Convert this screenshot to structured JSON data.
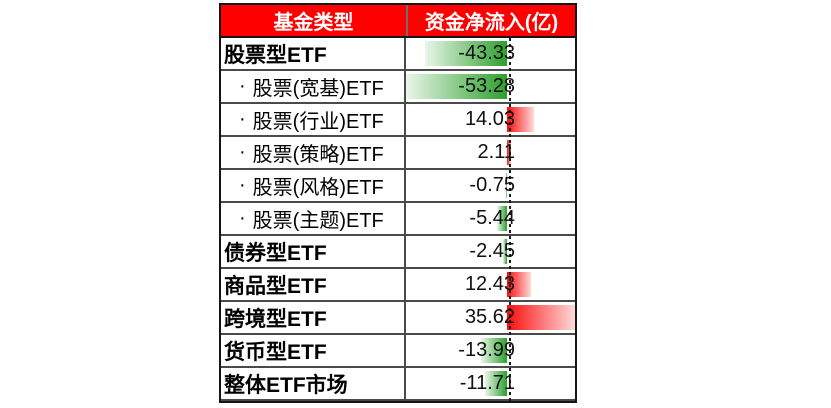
{
  "colors": {
    "header_bg": "#FE0000",
    "header_text": "#FFFFFF",
    "negative_bar_strong": "#2CA02C",
    "negative_bar_pale": "#EAF6EA",
    "positive_bar_strong": "#FB0D0D",
    "positive_bar_pale": "#FFD9D9",
    "grid_border": "#4A4A4A",
    "axis_dash": "#1C1C1C",
    "body_text": "#000000"
  },
  "table": {
    "bullet": "·",
    "columns": [
      {
        "label": "基金类型"
      },
      {
        "label": "资金净流入(亿)"
      }
    ],
    "scale": {
      "min": -53.28,
      "max": 35.62
    },
    "rows": [
      {
        "label": "股票型ETF",
        "value": -43.33,
        "value_text": "-43.33",
        "bold": true,
        "sub": false
      },
      {
        "label": "股票(宽基)ETF",
        "value": -53.28,
        "value_text": "-53.28",
        "bold": false,
        "sub": true
      },
      {
        "label": "股票(行业)ETF",
        "value": 14.03,
        "value_text": "14.03",
        "bold": false,
        "sub": true
      },
      {
        "label": "股票(策略)ETF",
        "value": 2.11,
        "value_text": "2.11",
        "bold": false,
        "sub": true
      },
      {
        "label": "股票(风格)ETF",
        "value": -0.75,
        "value_text": "-0.75",
        "bold": false,
        "sub": true
      },
      {
        "label": "股票(主题)ETF",
        "value": -5.44,
        "value_text": "-5.44",
        "bold": false,
        "sub": true
      },
      {
        "label": "债券型ETF",
        "value": -2.45,
        "value_text": "-2.45",
        "bold": true,
        "sub": false
      },
      {
        "label": "商品型ETF",
        "value": 12.43,
        "value_text": "12.43",
        "bold": true,
        "sub": false
      },
      {
        "label": "跨境型ETF",
        "value": 35.62,
        "value_text": "35.62",
        "bold": true,
        "sub": false
      },
      {
        "label": "货币型ETF",
        "value": -13.99,
        "value_text": "-13.99",
        "bold": true,
        "sub": false
      },
      {
        "label": "整体ETF市场",
        "value": -11.71,
        "value_text": "-11.71",
        "bold": true,
        "sub": false
      }
    ]
  },
  "chart_data": {
    "type": "table",
    "title": "",
    "columns": [
      "基金类型",
      "资金净流入(亿)"
    ],
    "categories": [
      "股票型ETF",
      "股票(宽基)ETF",
      "股票(行业)ETF",
      "股票(策略)ETF",
      "股票(风格)ETF",
      "股票(主题)ETF",
      "债券型ETF",
      "商品型ETF",
      "跨境型ETF",
      "货币型ETF",
      "整体ETF市场"
    ],
    "values": [
      -43.33,
      -53.28,
      14.03,
      2.11,
      -0.75,
      -5.44,
      -2.45,
      12.43,
      35.62,
      -13.99,
      -11.71
    ],
    "bar_style": {
      "kind": "in-cell data bars with gradient fill",
      "negative_color": "green",
      "positive_color": "red",
      "axis": 0,
      "axis_line": "dashed vertical",
      "range_min": -53.28,
      "range_max": 35.62
    }
  }
}
